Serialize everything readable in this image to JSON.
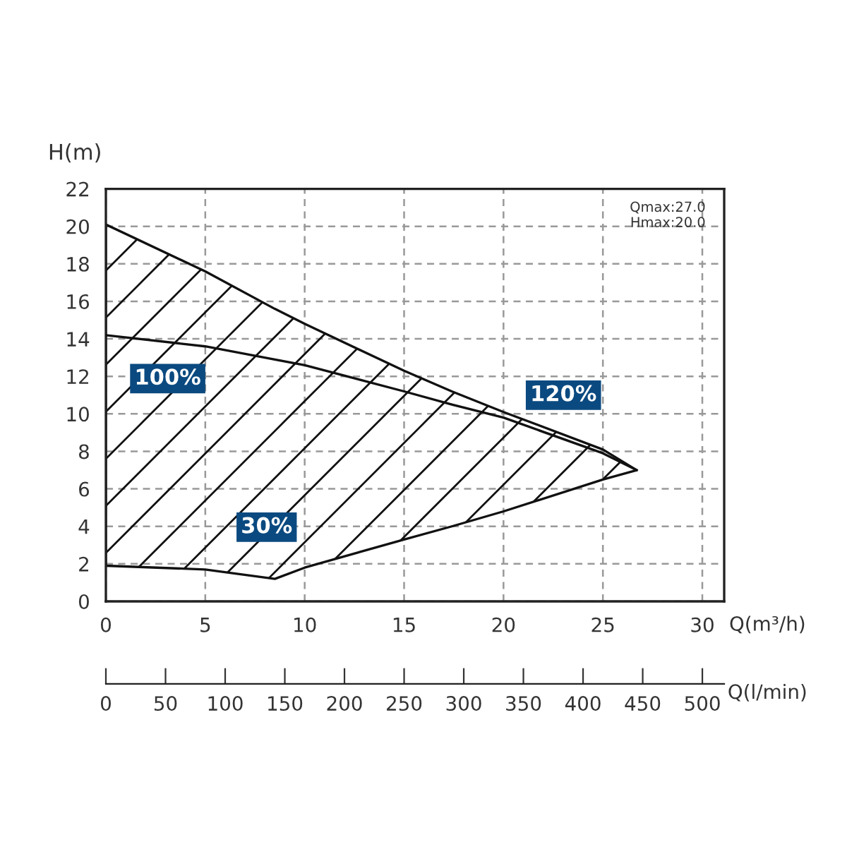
{
  "chart_data": {
    "type": "line",
    "xlabel": "Q(m³/h)",
    "ylabel": "H(m)",
    "x2label": "Q(l/min)",
    "x": [
      0,
      5,
      8.5,
      10,
      15,
      17.4,
      20,
      25,
      26.7
    ],
    "series": [
      {
        "color": "#111111",
        "values": [
          14.2,
          13.6,
          12.9,
          12.6,
          11.2,
          10.5,
          9.8,
          7.9,
          7.0
        ],
        "lower": [
          1.9,
          1.7,
          1.2,
          1.8,
          3.3,
          4.0,
          4.8,
          6.5,
          7.0
        ],
        "upper": [
          20.1,
          17.6,
          15.6,
          14.8,
          12.3,
          11.2,
          10.1,
          8.1,
          7.0
        ]
      }
    ],
    "xlim": [
      0,
      31.1
    ],
    "xticks": [
      0,
      5,
      10,
      15,
      20,
      25,
      30
    ],
    "ylim": [
      0,
      22
    ],
    "yticks": [
      0,
      2,
      4,
      6,
      8,
      10,
      12,
      14,
      16,
      18,
      20,
      22
    ],
    "x2lim": [
      0,
      518.3
    ],
    "x2ticks": [
      0,
      50,
      100,
      150,
      200,
      250,
      300,
      350,
      400,
      450,
      500
    ],
    "grid": true,
    "marker": "none",
    "line_style": "solid",
    "annotations": [
      "100%",
      "120%",
      "30%",
      "Qmax:27.0\nHmax:20.0"
    ]
  }
}
